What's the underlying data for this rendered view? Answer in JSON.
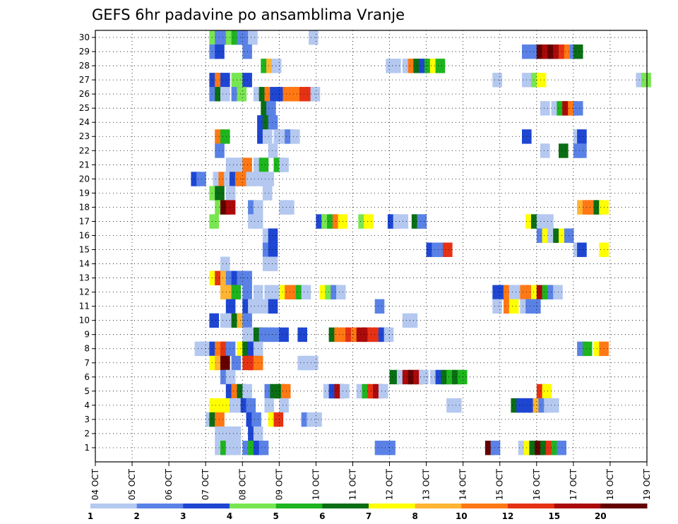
{
  "chart_data": {
    "type": "heatmap",
    "title": "GEFS 6hr padavine po ansamblima Vranje",
    "xlabel": "",
    "ylabel": "",
    "x_ticks": [
      "04 OCT",
      "05 OCT",
      "06 OCT",
      "07 OCT",
      "08 OCT",
      "09 OCT",
      "10 OCT",
      "11 OCT",
      "12 OCT",
      "13 OCT",
      "14 OCT",
      "15 OCT",
      "16 OCT",
      "17 OCT",
      "18 OCT",
      "19 OCT"
    ],
    "y_ticks": [
      "1",
      "2",
      "3",
      "4",
      "5",
      "6",
      "7",
      "8",
      "9",
      "10",
      "11",
      "12",
      "13",
      "14",
      "15",
      "16",
      "17",
      "18",
      "19",
      "20",
      "21",
      "22",
      "23",
      "24",
      "25",
      "26",
      "27",
      "28",
      "29",
      "30"
    ],
    "x_range_days": [
      "04 OCT",
      "19 OCT"
    ],
    "y_range": [
      0,
      30
    ],
    "grid": true,
    "colorbar": {
      "labels": [
        "1",
        "2",
        "3",
        "4",
        "5",
        "6",
        "7",
        "8",
        "10",
        "12",
        "15",
        "20"
      ],
      "colors": [
        "#b4c8f0",
        "#5a82e6",
        "#1e46d2",
        "#78e650",
        "#1eb41e",
        "#0a6e14",
        "#ffff00",
        "#ffb432",
        "#ff7814",
        "#e63214",
        "#aa0a0a",
        "#640000"
      ]
    },
    "cells_note": "each cell: [member, forecast_day_offset_from_04_OCT, category_index]",
    "cells": [
      [
        30,
        3.1,
        3
      ],
      [
        30,
        3.25,
        1
      ],
      [
        30,
        3.4,
        1
      ],
      [
        30,
        3.55,
        3
      ],
      [
        30,
        3.7,
        4
      ],
      [
        30,
        3.85,
        1
      ],
      [
        30,
        4.0,
        1
      ],
      [
        30,
        4.15,
        0
      ],
      [
        30,
        5.8,
        0
      ],
      [
        29,
        3.1,
        1
      ],
      [
        29,
        3.25,
        2
      ],
      [
        29,
        4.0,
        1
      ],
      [
        29,
        11.6,
        1
      ],
      [
        29,
        11.85,
        1
      ],
      [
        29,
        12.0,
        11
      ],
      [
        29,
        12.15,
        10
      ],
      [
        29,
        12.3,
        11
      ],
      [
        29,
        12.45,
        10
      ],
      [
        29,
        12.6,
        9
      ],
      [
        29,
        12.75,
        8
      ],
      [
        29,
        12.9,
        1
      ],
      [
        29,
        13.0,
        5
      ],
      [
        28,
        4.5,
        4
      ],
      [
        28,
        4.65,
        7
      ],
      [
        28,
        4.8,
        0
      ],
      [
        28,
        7.9,
        0
      ],
      [
        28,
        8.05,
        0
      ],
      [
        28,
        8.35,
        0
      ],
      [
        28,
        8.5,
        8
      ],
      [
        28,
        8.65,
        5
      ],
      [
        28,
        8.8,
        2
      ],
      [
        28,
        8.95,
        4
      ],
      [
        28,
        9.1,
        6
      ],
      [
        28,
        9.25,
        4
      ],
      [
        27,
        3.1,
        2
      ],
      [
        27,
        3.25,
        8
      ],
      [
        27,
        3.4,
        2
      ],
      [
        27,
        3.7,
        3
      ],
      [
        27,
        3.85,
        3
      ],
      [
        27,
        4.0,
        2
      ],
      [
        27,
        10.8,
        0
      ],
      [
        27,
        11.6,
        0
      ],
      [
        27,
        11.85,
        3
      ],
      [
        27,
        12.0,
        6
      ],
      [
        27,
        14.7,
        0
      ],
      [
        27,
        14.85,
        3
      ],
      [
        26,
        3.1,
        1
      ],
      [
        26,
        3.25,
        5
      ],
      [
        26,
        3.4,
        0
      ],
      [
        26,
        3.7,
        1
      ],
      [
        26,
        3.85,
        3
      ],
      [
        26,
        4.3,
        0
      ],
      [
        26,
        4.45,
        5
      ],
      [
        26,
        4.6,
        8
      ],
      [
        26,
        4.75,
        2
      ],
      [
        26,
        4.9,
        2
      ],
      [
        26,
        5.1,
        8
      ],
      [
        26,
        5.25,
        8
      ],
      [
        26,
        5.4,
        8
      ],
      [
        26,
        5.55,
        9
      ],
      [
        26,
        5.7,
        9
      ],
      [
        26,
        5.85,
        0
      ],
      [
        25,
        4.5,
        5
      ],
      [
        25,
        4.65,
        1
      ],
      [
        25,
        12.1,
        0
      ],
      [
        25,
        12.4,
        0
      ],
      [
        25,
        12.55,
        4
      ],
      [
        25,
        12.7,
        10
      ],
      [
        25,
        12.85,
        8
      ],
      [
        25,
        13.0,
        1
      ],
      [
        24,
        4.4,
        2
      ],
      [
        24,
        4.55,
        5
      ],
      [
        24,
        4.7,
        1
      ],
      [
        23,
        3.25,
        8
      ],
      [
        23,
        3.4,
        4
      ],
      [
        23,
        4.4,
        2
      ],
      [
        23,
        4.55,
        0
      ],
      [
        23,
        4.85,
        0
      ],
      [
        23,
        5.0,
        0
      ],
      [
        23,
        5.15,
        1
      ],
      [
        23,
        5.3,
        0
      ],
      [
        23,
        11.6,
        2
      ],
      [
        23,
        13.0,
        0
      ],
      [
        23,
        13.1,
        2
      ],
      [
        22,
        3.25,
        1
      ],
      [
        22,
        4.7,
        0
      ],
      [
        22,
        12.1,
        0
      ],
      [
        22,
        12.6,
        5
      ],
      [
        22,
        13.0,
        1
      ],
      [
        22,
        13.1,
        1
      ],
      [
        21,
        3.55,
        0
      ],
      [
        21,
        3.7,
        0
      ],
      [
        21,
        3.85,
        0
      ],
      [
        21,
        4.0,
        8
      ],
      [
        21,
        4.3,
        0
      ],
      [
        21,
        4.45,
        4
      ],
      [
        21,
        4.85,
        4
      ],
      [
        21,
        5.0,
        0
      ],
      [
        20,
        2.6,
        2
      ],
      [
        20,
        2.75,
        1
      ],
      [
        20,
        3.2,
        0
      ],
      [
        20,
        3.35,
        8
      ],
      [
        20,
        3.5,
        0
      ],
      [
        20,
        3.65,
        2
      ],
      [
        20,
        3.8,
        8
      ],
      [
        20,
        3.95,
        8
      ],
      [
        20,
        4.1,
        0
      ],
      [
        20,
        4.3,
        0
      ],
      [
        20,
        4.45,
        0
      ],
      [
        20,
        4.6,
        0
      ],
      [
        19,
        3.1,
        3
      ],
      [
        19,
        3.25,
        5
      ],
      [
        19,
        3.55,
        0
      ],
      [
        19,
        4.55,
        0
      ],
      [
        18,
        3.25,
        3
      ],
      [
        18,
        3.4,
        11
      ],
      [
        18,
        3.55,
        10
      ],
      [
        18,
        4.15,
        1
      ],
      [
        18,
        4.3,
        0
      ],
      [
        18,
        5.0,
        0
      ],
      [
        18,
        5.15,
        0
      ],
      [
        18,
        13.1,
        7
      ],
      [
        18,
        13.25,
        8
      ],
      [
        18,
        13.4,
        8
      ],
      [
        18,
        13.55,
        5
      ],
      [
        18,
        13.7,
        6
      ],
      [
        17,
        3.1,
        3
      ],
      [
        17,
        4.15,
        0
      ],
      [
        17,
        4.3,
        0
      ],
      [
        17,
        6.0,
        2
      ],
      [
        17,
        6.15,
        3
      ],
      [
        17,
        6.3,
        4
      ],
      [
        17,
        6.45,
        8
      ],
      [
        17,
        6.6,
        6
      ],
      [
        17,
        7.15,
        3
      ],
      [
        17,
        7.3,
        6
      ],
      [
        17,
        7.95,
        2
      ],
      [
        17,
        8.1,
        0
      ],
      [
        17,
        8.25,
        0
      ],
      [
        17,
        8.6,
        5
      ],
      [
        17,
        8.75,
        1
      ],
      [
        17,
        11.7,
        6
      ],
      [
        17,
        11.85,
        5
      ],
      [
        17,
        12.0,
        0
      ],
      [
        17,
        12.2,
        0
      ],
      [
        16,
        4.55,
        0
      ],
      [
        16,
        4.7,
        2
      ],
      [
        16,
        12.0,
        1
      ],
      [
        16,
        12.15,
        6
      ],
      [
        16,
        12.3,
        0
      ],
      [
        16,
        12.45,
        5
      ],
      [
        16,
        12.6,
        6
      ],
      [
        16,
        12.75,
        1
      ],
      [
        15,
        4.55,
        1
      ],
      [
        15,
        4.7,
        2
      ],
      [
        15,
        9.0,
        2
      ],
      [
        15,
        9.15,
        1
      ],
      [
        15,
        9.3,
        1
      ],
      [
        15,
        9.45,
        9
      ],
      [
        15,
        13.0,
        0
      ],
      [
        15,
        13.1,
        2
      ],
      [
        15,
        13.7,
        6
      ],
      [
        14,
        3.4,
        0
      ],
      [
        14,
        4.55,
        0
      ],
      [
        14,
        4.7,
        0
      ],
      [
        13,
        3.1,
        6
      ],
      [
        13,
        3.25,
        9
      ],
      [
        13,
        3.4,
        7
      ],
      [
        13,
        3.55,
        1
      ],
      [
        13,
        3.7,
        2
      ],
      [
        13,
        3.85,
        1
      ],
      [
        13,
        4.0,
        1
      ],
      [
        12,
        3.4,
        7
      ],
      [
        12,
        3.55,
        7
      ],
      [
        12,
        3.7,
        4
      ],
      [
        12,
        4.0,
        1
      ],
      [
        12,
        4.3,
        0
      ],
      [
        12,
        4.6,
        0
      ],
      [
        12,
        4.75,
        0
      ],
      [
        12,
        5.0,
        6
      ],
      [
        12,
        5.15,
        8
      ],
      [
        12,
        5.3,
        8
      ],
      [
        12,
        5.45,
        4
      ],
      [
        12,
        5.6,
        0
      ],
      [
        12,
        6.1,
        6
      ],
      [
        12,
        6.25,
        3
      ],
      [
        12,
        6.4,
        1
      ],
      [
        12,
        6.55,
        0
      ],
      [
        12,
        10.8,
        2
      ],
      [
        12,
        10.95,
        2
      ],
      [
        12,
        11.1,
        8
      ],
      [
        12,
        11.25,
        0
      ],
      [
        12,
        11.4,
        0
      ],
      [
        12,
        11.55,
        8
      ],
      [
        12,
        11.7,
        8
      ],
      [
        12,
        11.85,
        6
      ],
      [
        12,
        12.0,
        10
      ],
      [
        12,
        12.15,
        4
      ],
      [
        12,
        12.3,
        1
      ],
      [
        12,
        12.45,
        0
      ],
      [
        11,
        3.55,
        2
      ],
      [
        11,
        4.0,
        2
      ],
      [
        11,
        4.15,
        0
      ],
      [
        11,
        4.3,
        0
      ],
      [
        11,
        4.55,
        0
      ],
      [
        11,
        4.7,
        2
      ],
      [
        11,
        7.6,
        1
      ],
      [
        11,
        10.8,
        0
      ],
      [
        11,
        11.1,
        8
      ],
      [
        11,
        11.25,
        6
      ],
      [
        11,
        11.55,
        0
      ],
      [
        11,
        11.7,
        1
      ],
      [
        11,
        11.85,
        1
      ],
      [
        10,
        3.1,
        2
      ],
      [
        10,
        3.4,
        0
      ],
      [
        10,
        3.55,
        0
      ],
      [
        10,
        3.7,
        5
      ],
      [
        10,
        3.85,
        7
      ],
      [
        10,
        4.0,
        1
      ],
      [
        10,
        8.35,
        0
      ],
      [
        10,
        8.5,
        0
      ],
      [
        9,
        4.0,
        0
      ],
      [
        9,
        4.15,
        0
      ],
      [
        9,
        4.3,
        5
      ],
      [
        9,
        4.45,
        1
      ],
      [
        9,
        4.6,
        1
      ],
      [
        9,
        4.75,
        1
      ],
      [
        9,
        5.0,
        2
      ],
      [
        9,
        5.5,
        2
      ],
      [
        9,
        6.35,
        5
      ],
      [
        9,
        6.5,
        8
      ],
      [
        9,
        6.65,
        8
      ],
      [
        9,
        6.8,
        9
      ],
      [
        9,
        6.95,
        8
      ],
      [
        9,
        7.1,
        10
      ],
      [
        9,
        7.25,
        10
      ],
      [
        9,
        7.4,
        9
      ],
      [
        9,
        7.55,
        9
      ],
      [
        9,
        7.7,
        2
      ],
      [
        9,
        7.85,
        0
      ],
      [
        8,
        2.7,
        0
      ],
      [
        8,
        2.85,
        0
      ],
      [
        8,
        3.1,
        2
      ],
      [
        8,
        3.25,
        8
      ],
      [
        8,
        3.4,
        9
      ],
      [
        8,
        3.55,
        1
      ],
      [
        8,
        3.85,
        6
      ],
      [
        8,
        4.0,
        5
      ],
      [
        8,
        4.15,
        2
      ],
      [
        8,
        4.3,
        0
      ],
      [
        8,
        13.1,
        1
      ],
      [
        8,
        13.25,
        4
      ],
      [
        8,
        13.55,
        6
      ],
      [
        8,
        13.7,
        8
      ],
      [
        7,
        3.1,
        6
      ],
      [
        7,
        3.25,
        7
      ],
      [
        7,
        3.4,
        11
      ],
      [
        7,
        3.7,
        1
      ],
      [
        7,
        4.0,
        9
      ],
      [
        7,
        4.15,
        9
      ],
      [
        7,
        4.3,
        8
      ],
      [
        7,
        5.5,
        0
      ],
      [
        7,
        5.65,
        0
      ],
      [
        7,
        5.8,
        0
      ],
      [
        6,
        3.4,
        1
      ],
      [
        6,
        3.55,
        0
      ],
      [
        6,
        8.0,
        5
      ],
      [
        6,
        8.2,
        0
      ],
      [
        6,
        8.35,
        10
      ],
      [
        6,
        8.5,
        11
      ],
      [
        6,
        8.65,
        10
      ],
      [
        6,
        8.8,
        0
      ],
      [
        6,
        9.1,
        0
      ],
      [
        6,
        9.25,
        2
      ],
      [
        6,
        9.4,
        5
      ],
      [
        6,
        9.55,
        4
      ],
      [
        6,
        9.7,
        5
      ],
      [
        6,
        9.85,
        4
      ],
      [
        5,
        3.55,
        2
      ],
      [
        5,
        3.7,
        8
      ],
      [
        5,
        3.85,
        5
      ],
      [
        5,
        4.0,
        0
      ],
      [
        5,
        4.6,
        1
      ],
      [
        5,
        4.75,
        5
      ],
      [
        5,
        4.9,
        5
      ],
      [
        5,
        5.05,
        8
      ],
      [
        5,
        6.2,
        0
      ],
      [
        5,
        6.35,
        2
      ],
      [
        5,
        6.5,
        10
      ],
      [
        5,
        6.65,
        0
      ],
      [
        5,
        7.1,
        0
      ],
      [
        5,
        7.25,
        4
      ],
      [
        5,
        7.4,
        9
      ],
      [
        5,
        7.55,
        10
      ],
      [
        5,
        7.7,
        0
      ],
      [
        5,
        12.0,
        9
      ],
      [
        5,
        12.15,
        6
      ],
      [
        4,
        3.1,
        6
      ],
      [
        4,
        3.25,
        6
      ],
      [
        4,
        3.4,
        6
      ],
      [
        4,
        3.65,
        0
      ],
      [
        4,
        3.8,
        0
      ],
      [
        4,
        3.95,
        2
      ],
      [
        4,
        4.1,
        1
      ],
      [
        4,
        4.6,
        0
      ],
      [
        4,
        5.0,
        0
      ],
      [
        4,
        9.55,
        0
      ],
      [
        4,
        9.7,
        0
      ],
      [
        4,
        11.3,
        5
      ],
      [
        4,
        11.45,
        2
      ],
      [
        4,
        11.6,
        2
      ],
      [
        4,
        11.75,
        2
      ],
      [
        4,
        11.9,
        7
      ],
      [
        4,
        12.05,
        1
      ],
      [
        4,
        12.2,
        0
      ],
      [
        4,
        12.35,
        0
      ],
      [
        3,
        3.0,
        0
      ],
      [
        3,
        3.1,
        5
      ],
      [
        3,
        3.25,
        8
      ],
      [
        3,
        4.1,
        2
      ],
      [
        3,
        4.25,
        1
      ],
      [
        3,
        4.7,
        6
      ],
      [
        3,
        4.85,
        9
      ],
      [
        3,
        5.6,
        1
      ],
      [
        3,
        5.75,
        0
      ],
      [
        3,
        5.9,
        0
      ],
      [
        2,
        3.25,
        0
      ],
      [
        2,
        3.4,
        0
      ],
      [
        2,
        3.55,
        0
      ],
      [
        2,
        3.7,
        0
      ],
      [
        2,
        4.15,
        2
      ],
      [
        2,
        4.3,
        0
      ],
      [
        1,
        3.25,
        0
      ],
      [
        1,
        3.4,
        4
      ],
      [
        1,
        3.55,
        0
      ],
      [
        1,
        3.7,
        0
      ],
      [
        1,
        4.0,
        1
      ],
      [
        1,
        4.15,
        4
      ],
      [
        1,
        4.3,
        2
      ],
      [
        1,
        4.45,
        1
      ],
      [
        1,
        7.6,
        1
      ],
      [
        1,
        7.75,
        1
      ],
      [
        1,
        7.9,
        1
      ],
      [
        1,
        10.6,
        11
      ],
      [
        1,
        10.75,
        1
      ],
      [
        1,
        11.5,
        0
      ],
      [
        1,
        11.65,
        6
      ],
      [
        1,
        11.8,
        5
      ],
      [
        1,
        11.95,
        11
      ],
      [
        1,
        12.1,
        5
      ],
      [
        1,
        12.25,
        9
      ],
      [
        1,
        12.4,
        4
      ],
      [
        1,
        12.55,
        1
      ]
    ]
  }
}
